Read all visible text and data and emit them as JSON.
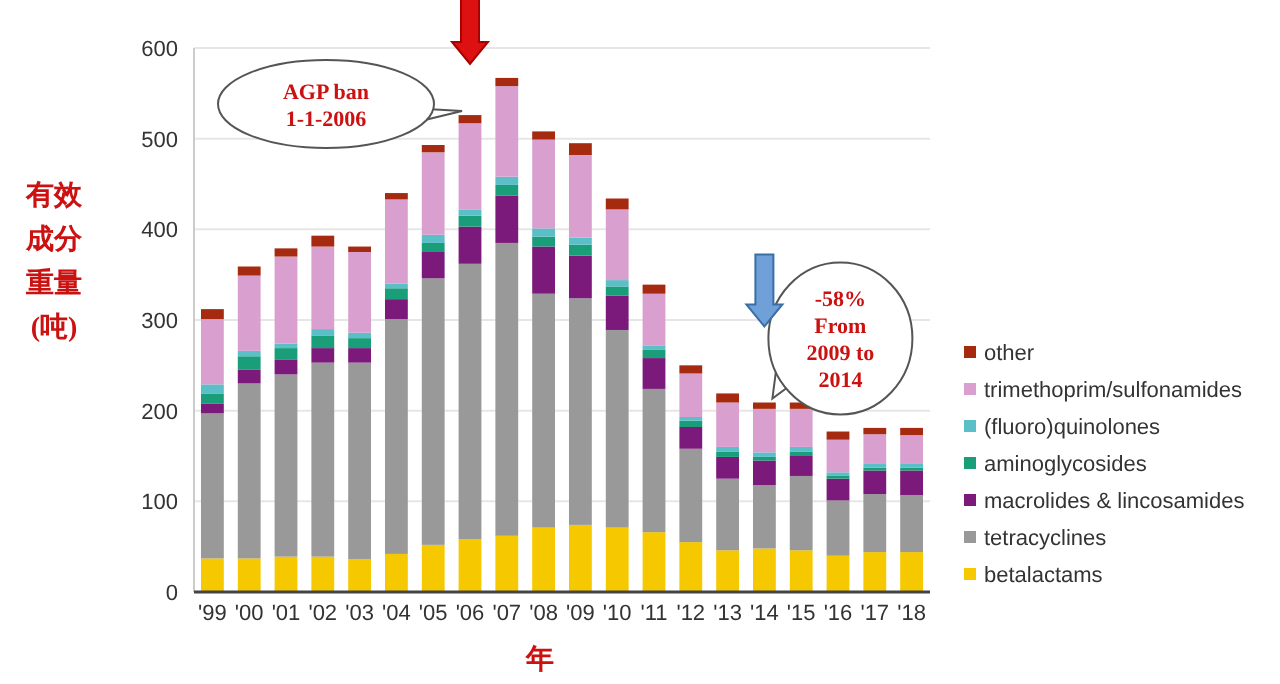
{
  "chart_data": {
    "type": "bar",
    "stacked": true,
    "ylabel": "有效成分重量(吨)",
    "xlabel": "年",
    "categories": [
      "'99",
      "'00",
      "'01",
      "'02",
      "'03",
      "'04",
      "'05",
      "'06",
      "'07",
      "'08",
      "'09",
      "'10",
      "'11",
      "'12",
      "'13",
      "'14",
      "'15",
      "'16",
      "'17",
      "'18"
    ],
    "series": [
      {
        "name": "betalactams",
        "color": "#f5c800",
        "values": [
          37,
          37,
          39,
          39,
          36,
          42,
          52,
          58,
          62,
          71,
          74,
          71,
          66,
          55,
          46,
          48,
          46,
          40,
          44,
          44
        ]
      },
      {
        "name": "tetracyclines",
        "color": "#999999",
        "values": [
          160,
          193,
          201,
          214,
          217,
          259,
          294,
          304,
          323,
          258,
          250,
          218,
          158,
          103,
          79,
          70,
          82,
          61,
          64,
          63
        ]
      },
      {
        "name": "macrolides & lincosamides",
        "color": "#7b1a7b",
        "values": [
          11,
          15,
          16,
          16,
          16,
          22,
          29,
          41,
          52,
          52,
          47,
          38,
          34,
          24,
          24,
          27,
          22,
          24,
          26,
          27
        ]
      },
      {
        "name": "aminoglycosides",
        "color": "#1a9e7a",
        "values": [
          11,
          15,
          13,
          14,
          11,
          12,
          10,
          12,
          12,
          11,
          12,
          10,
          9,
          7,
          6,
          4,
          5,
          3,
          3,
          3
        ]
      },
      {
        "name": "(fluoro)quinolones",
        "color": "#5bbfc8",
        "values": [
          10,
          6,
          5,
          7,
          6,
          5,
          9,
          7,
          9,
          9,
          8,
          7,
          5,
          4,
          5,
          5,
          5,
          4,
          5,
          5
        ]
      },
      {
        "name": "trimethoprim/sulfonamides",
        "color": "#d9a0cf",
        "values": [
          72,
          83,
          96,
          91,
          89,
          93,
          91,
          95,
          100,
          98,
          91,
          78,
          57,
          48,
          49,
          48,
          42,
          36,
          32,
          31
        ]
      },
      {
        "name": "other",
        "color": "#a52a10",
        "values": [
          11,
          10,
          9,
          12,
          6,
          7,
          8,
          9,
          9,
          9,
          13,
          12,
          10,
          9,
          10,
          7,
          7,
          9,
          7,
          8
        ]
      }
    ],
    "ylim": [
      0,
      600
    ],
    "yticks": [
      0,
      100,
      200,
      300,
      400,
      500,
      600
    ],
    "grid": "y",
    "legend": "right",
    "annotations": [
      {
        "text": "AGP ban 1-1-2006",
        "x": "'06",
        "y": 526
      },
      {
        "text": "-58% From 2009 to 2014",
        "x": "'14",
        "y": 209
      }
    ]
  }
}
